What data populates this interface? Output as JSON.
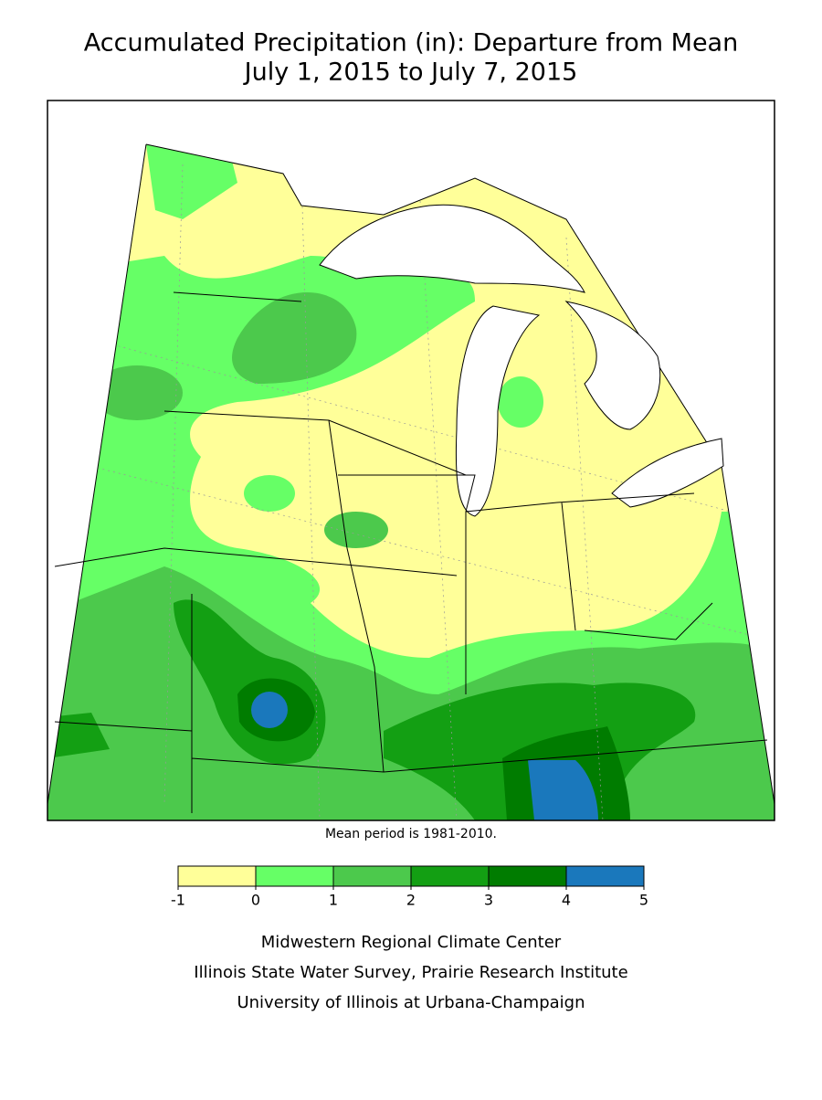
{
  "title": "Accumulated Precipitation (in): Departure from Mean",
  "subtitle": "July 1, 2015 to July 7, 2015",
  "note": "Mean period is 1981-2010.",
  "legend": {
    "bins": [
      -1,
      0,
      1,
      2,
      3,
      4,
      5
    ],
    "colors": [
      "#ffff99",
      "#66ff66",
      "#4cc94c",
      "#139f13",
      "#007c00",
      "#1a78bc"
    ]
  },
  "credits": [
    "Midwestern Regional Climate Center",
    "Illinois State Water Survey, Prairie Research Institute",
    "University of Illinois at Urbana-Champaign"
  ]
}
